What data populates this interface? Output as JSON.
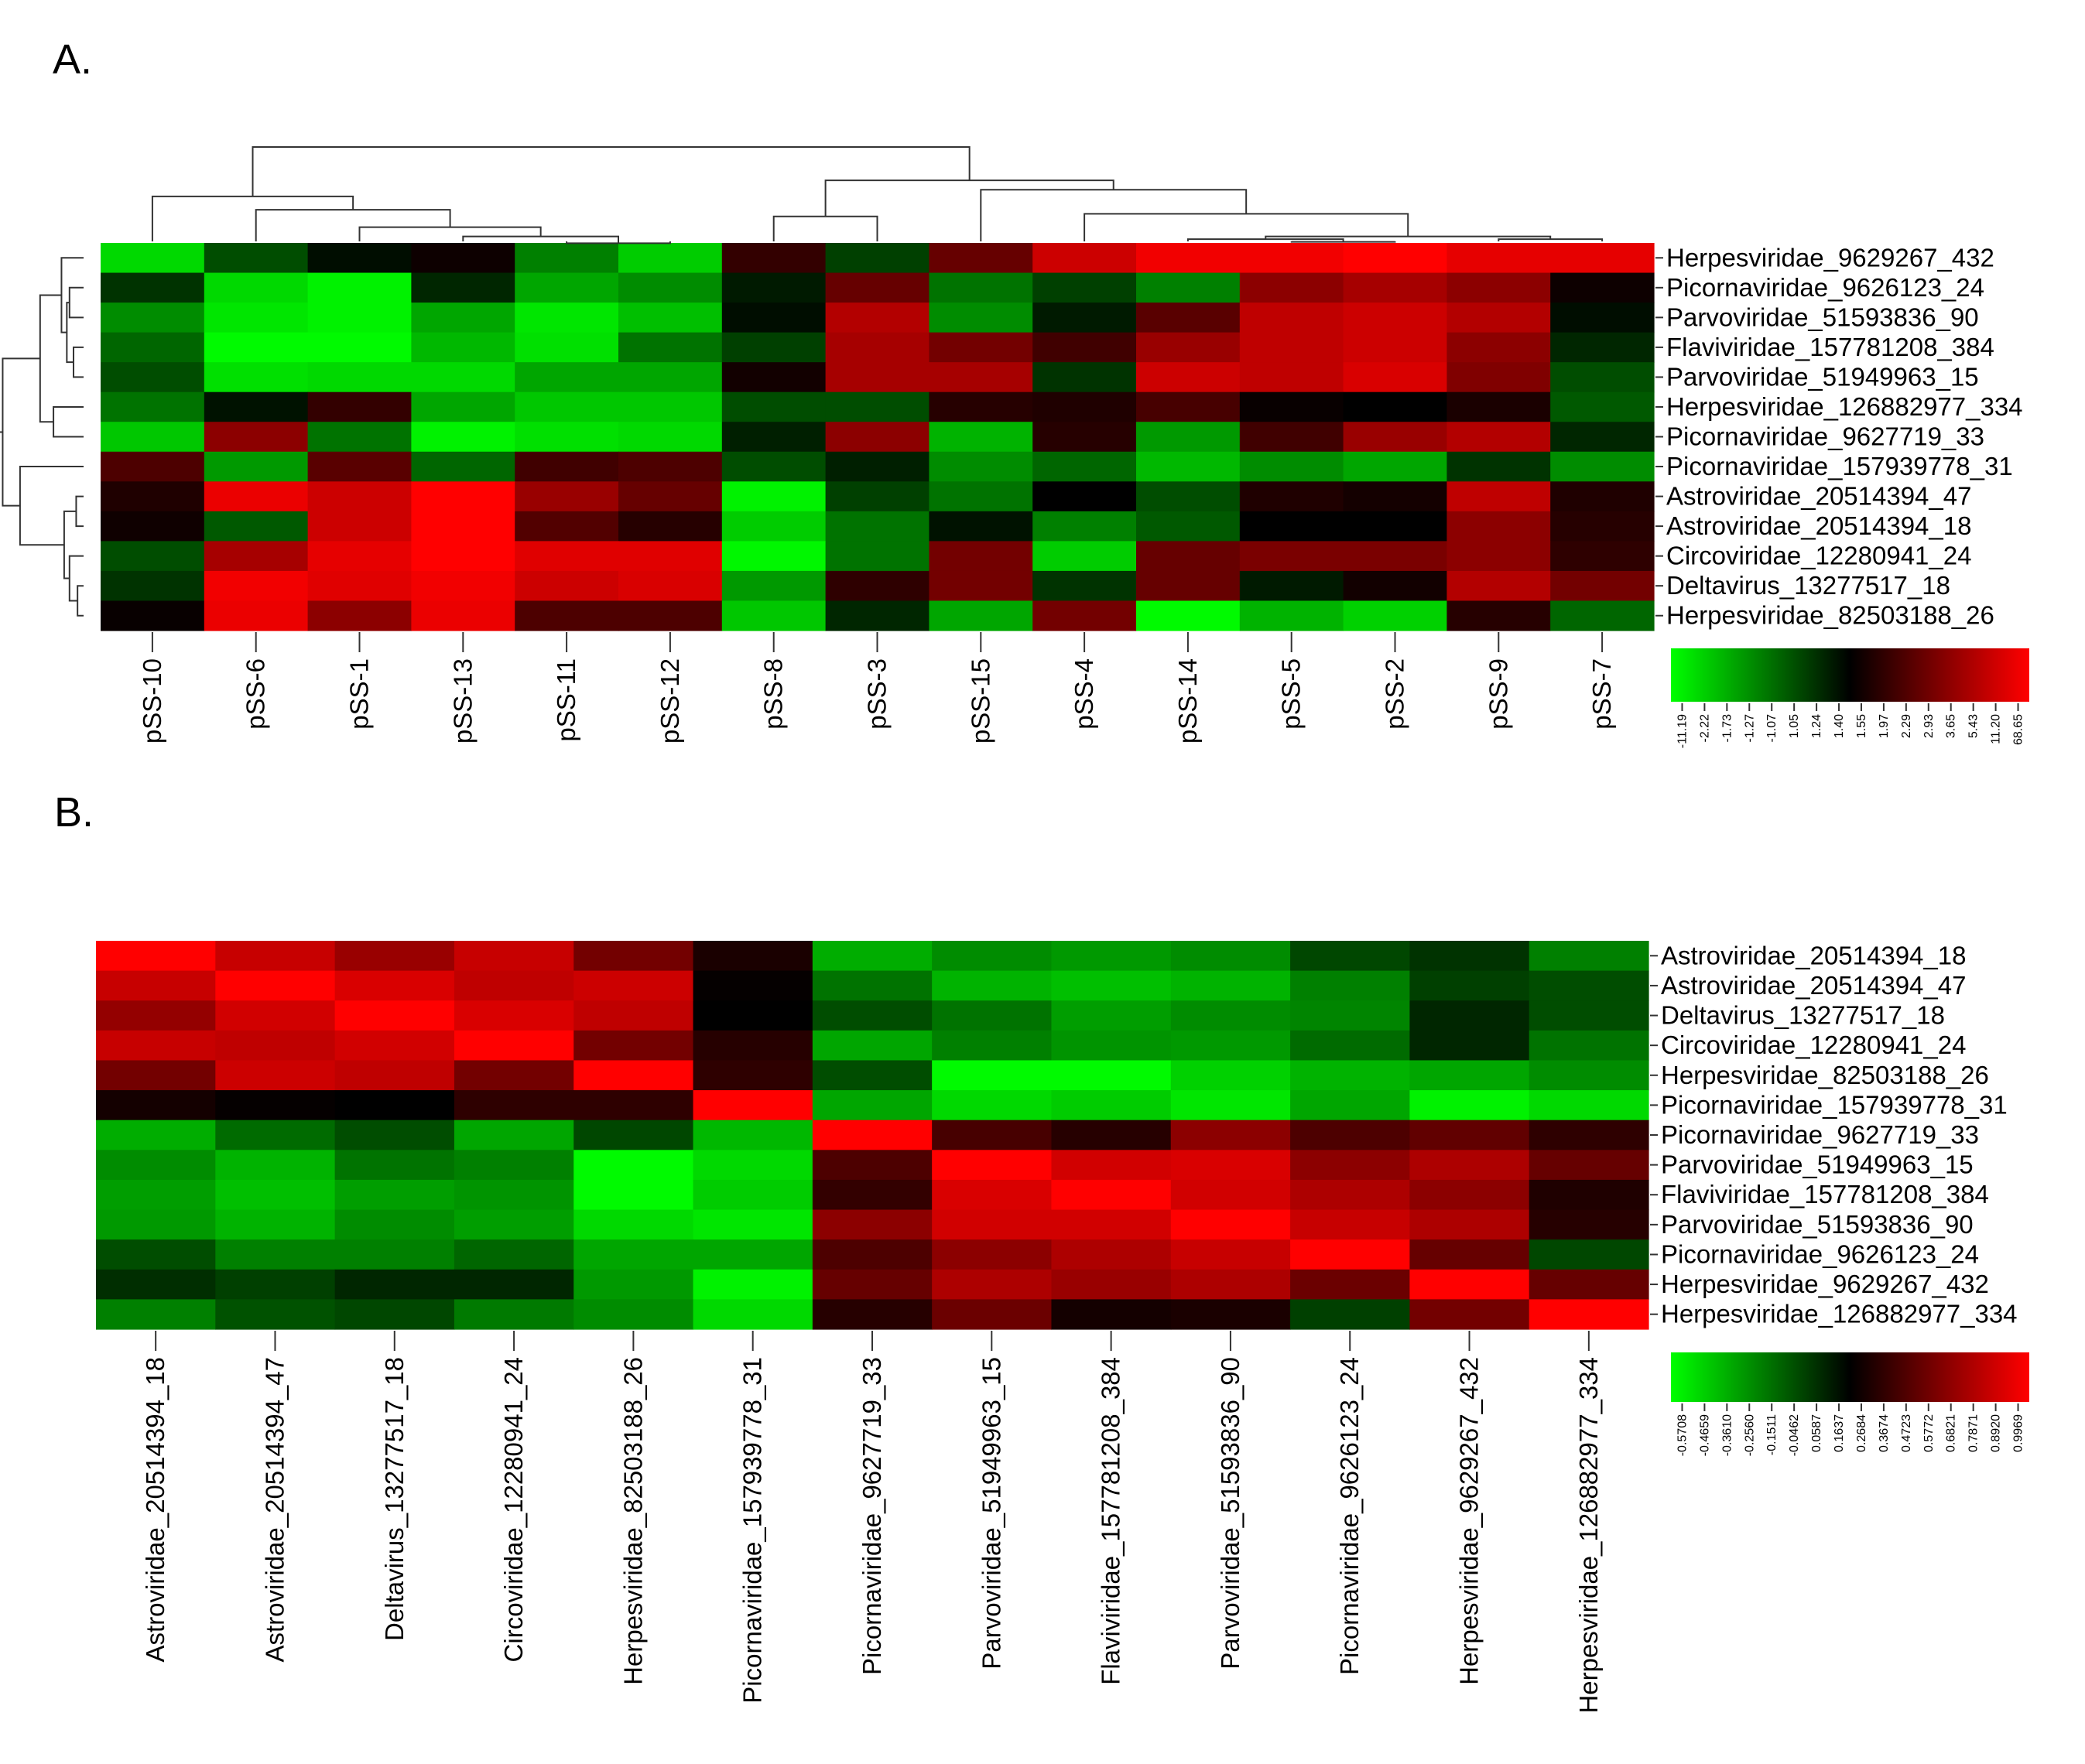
{
  "chart_data": [
    {
      "type": "heatmap",
      "panel_label": "A.",
      "rows": [
        "Herpesviridae_9629267_432",
        "Picornaviridae_9626123_24",
        "Parvoviridae_51593836_90",
        "Flaviviridae_157781208_384",
        "Parvoviridae_51949963_15",
        "Herpesviridae_126882977_334",
        "Picornaviridae_9627719_33",
        "Picornaviridae_157939778_31",
        "Astroviridae_20514394_47",
        "Astroviridae_20514394_18",
        "Circoviridae_12280941_24",
        "Deltavirus_13277517_18",
        "Herpesviridae_82503188_26"
      ],
      "columns": [
        "pSS-10",
        "pSS-6",
        "pSS-1",
        "pSS-13",
        "pSS-11",
        "pSS-12",
        "pSS-8",
        "pSS-3",
        "pSS-15",
        "pSS-4",
        "pSS-14",
        "pSS-5",
        "pSS-2",
        "pSS-9",
        "pSS-7"
      ],
      "values": [
        [
          -0.85,
          -0.3,
          -0.05,
          0.05,
          -0.5,
          -0.8,
          0.2,
          -0.25,
          0.4,
          0.8,
          0.95,
          0.95,
          1.0,
          0.9,
          0.9
        ],
        [
          -0.2,
          -0.85,
          -0.95,
          -0.15,
          -0.65,
          -0.55,
          -0.1,
          0.4,
          -0.45,
          -0.25,
          -0.5,
          0.55,
          0.65,
          0.55,
          0.05
        ],
        [
          -0.55,
          -0.9,
          -0.95,
          -0.65,
          -0.9,
          -0.75,
          -0.05,
          0.7,
          -0.55,
          -0.1,
          0.35,
          0.75,
          0.8,
          0.7,
          -0.05
        ],
        [
          -0.4,
          -0.98,
          -0.98,
          -0.72,
          -0.88,
          -0.45,
          -0.25,
          0.65,
          0.45,
          0.25,
          0.6,
          0.75,
          0.8,
          0.55,
          -0.15
        ],
        [
          -0.3,
          -0.88,
          -0.85,
          -0.85,
          -0.65,
          -0.65,
          0.07,
          0.65,
          0.65,
          -0.2,
          0.8,
          0.75,
          0.85,
          0.5,
          -0.3
        ],
        [
          -0.45,
          -0.07,
          0.2,
          -0.65,
          -0.78,
          -0.78,
          -0.3,
          -0.3,
          0.15,
          0.12,
          0.28,
          0.03,
          0.0,
          0.1,
          -0.35
        ],
        [
          -0.78,
          0.55,
          -0.45,
          -0.95,
          -0.88,
          -0.85,
          -0.12,
          0.55,
          -0.7,
          0.15,
          -0.6,
          0.25,
          0.6,
          0.7,
          -0.15
        ],
        [
          0.3,
          -0.6,
          0.35,
          -0.4,
          0.25,
          0.3,
          -0.3,
          -0.12,
          -0.55,
          -0.4,
          -0.72,
          -0.55,
          -0.65,
          -0.2,
          -0.55
        ],
        [
          0.12,
          0.92,
          0.8,
          1.0,
          0.6,
          0.4,
          -0.95,
          -0.25,
          -0.45,
          0.0,
          -0.3,
          0.12,
          0.08,
          0.75,
          0.12
        ],
        [
          0.06,
          -0.35,
          0.8,
          1.0,
          0.32,
          0.15,
          -0.8,
          -0.45,
          -0.07,
          -0.5,
          -0.35,
          0.0,
          0.0,
          0.55,
          0.15
        ],
        [
          -0.3,
          0.65,
          0.9,
          1.0,
          0.88,
          0.88,
          -0.97,
          -0.45,
          0.45,
          -0.8,
          0.4,
          0.48,
          0.48,
          0.55,
          0.18
        ],
        [
          -0.2,
          0.95,
          0.88,
          0.95,
          0.8,
          0.85,
          -0.6,
          0.18,
          0.45,
          -0.2,
          0.4,
          -0.1,
          0.07,
          0.7,
          0.45
        ],
        [
          0.03,
          0.92,
          0.55,
          0.92,
          0.3,
          0.3,
          -0.78,
          -0.15,
          -0.65,
          0.45,
          -0.98,
          -0.7,
          -0.82,
          0.15,
          -0.4
        ]
      ],
      "colorbar_ticks": [
        "-11.19",
        "-2.22",
        "-1.73",
        "-1.27",
        "-1.07",
        "1.05",
        "1.24",
        "1.40",
        "1.55",
        "1.97",
        "2.29",
        "2.93",
        "3.65",
        "5.43",
        "11.20",
        "68.65"
      ],
      "colors": {
        "low": "#00ff00",
        "mid": "#000000",
        "high": "#ff0000"
      },
      "dendrograms": {
        "rows": true,
        "columns": true
      }
    },
    {
      "type": "heatmap",
      "panel_label": "B.",
      "rows": [
        "Astroviridae_20514394_18",
        "Astroviridae_20514394_47",
        "Deltavirus_13277517_18",
        "Circoviridae_12280941_24",
        "Herpesviridae_82503188_26",
        "Picornaviridae_157939778_31",
        "Picornaviridae_9627719_33",
        "Parvoviridae_51949963_15",
        "Flaviviridae_157781208_384",
        "Parvoviridae_51593836_90",
        "Picornaviridae_9626123_24",
        "Herpesviridae_9629267_432",
        "Herpesviridae_126882977_334"
      ],
      "columns": [
        "Astroviridae_20514394_18",
        "Astroviridae_20514394_47",
        "Deltavirus_13277517_18",
        "Circoviridae_12280941_24",
        "Herpesviridae_82503188_26",
        "Picornaviridae_157939778_31",
        "Picornaviridae_9627719_33",
        "Parvoviridae_51949963_15",
        "Flaviviridae_157781208_384",
        "Parvoviridae_51593836_90",
        "Picornaviridae_9626123_24",
        "Herpesviridae_9629267_432",
        "Herpesviridae_126882977_334"
      ],
      "values": [
        [
          1.0,
          0.78,
          0.6,
          0.78,
          0.45,
          0.1,
          -0.68,
          -0.55,
          -0.6,
          -0.55,
          -0.28,
          -0.2,
          -0.5
        ],
        [
          0.78,
          1.0,
          0.85,
          0.75,
          0.8,
          0.02,
          -0.45,
          -0.7,
          -0.75,
          -0.7,
          -0.5,
          -0.25,
          -0.3
        ],
        [
          0.58,
          0.82,
          1.0,
          0.85,
          0.75,
          0.0,
          -0.3,
          -0.45,
          -0.62,
          -0.55,
          -0.52,
          -0.15,
          -0.3
        ],
        [
          0.78,
          0.75,
          0.82,
          1.0,
          0.45,
          0.15,
          -0.65,
          -0.5,
          -0.58,
          -0.6,
          -0.42,
          -0.15,
          -0.45
        ],
        [
          0.45,
          0.8,
          0.75,
          0.45,
          1.0,
          0.18,
          -0.3,
          -0.98,
          -0.98,
          -0.82,
          -0.7,
          -0.65,
          -0.55
        ],
        [
          0.08,
          0.02,
          0.0,
          0.18,
          0.18,
          1.0,
          -0.65,
          -0.85,
          -0.8,
          -0.9,
          -0.65,
          -0.95,
          -0.85
        ],
        [
          -0.68,
          -0.42,
          -0.3,
          -0.65,
          -0.28,
          -0.72,
          1.0,
          0.28,
          0.15,
          0.55,
          0.3,
          0.38,
          0.18
        ],
        [
          -0.55,
          -0.7,
          -0.45,
          -0.5,
          -0.98,
          -0.85,
          0.3,
          1.0,
          0.82,
          0.85,
          0.55,
          0.68,
          0.4
        ],
        [
          -0.62,
          -0.75,
          -0.62,
          -0.58,
          -0.98,
          -0.8,
          0.2,
          0.85,
          1.0,
          0.82,
          0.68,
          0.55,
          0.12
        ],
        [
          -0.6,
          -0.7,
          -0.55,
          -0.62,
          -0.85,
          -0.9,
          0.55,
          0.82,
          0.82,
          1.0,
          0.78,
          0.68,
          0.15
        ],
        [
          -0.3,
          -0.5,
          -0.5,
          -0.4,
          -0.65,
          -0.65,
          0.3,
          0.55,
          0.68,
          0.78,
          1.0,
          0.4,
          -0.28
        ],
        [
          -0.18,
          -0.25,
          -0.15,
          -0.15,
          -0.6,
          -0.95,
          0.4,
          0.68,
          0.6,
          0.68,
          0.42,
          1.0,
          0.4
        ],
        [
          -0.5,
          -0.32,
          -0.28,
          -0.48,
          -0.55,
          -0.85,
          0.15,
          0.42,
          0.08,
          0.1,
          -0.25,
          0.45,
          1.0
        ]
      ],
      "colorbar_ticks": [
        "-0.5708",
        "-0.4659",
        "-0.3610",
        "-0.2560",
        "-0.1511",
        "-0.0462",
        "0.0587",
        "0.1637",
        "0.2684",
        "0.3674",
        "0.4723",
        "0.5772",
        "0.6821",
        "0.7871",
        "0.8920",
        "0.9969"
      ],
      "colors": {
        "low": "#00ff00",
        "mid": "#000000",
        "high": "#ff0000"
      },
      "dendrograms": {
        "rows": false,
        "columns": false
      }
    }
  ]
}
